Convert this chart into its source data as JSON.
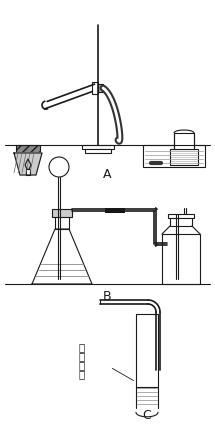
{
  "bg_color": "#ffffff",
  "label_A": "A",
  "label_B": "B",
  "label_C": "C",
  "text_C_line1": "石",
  "text_C_line2": "蜡",
  "text_C_line3": "溶",
  "text_C_line4": "液",
  "fig_width": 2.15,
  "fig_height": 4.32,
  "dpi": 100,
  "line_color": "#1a1a1a",
  "hatch_color": "#555555"
}
